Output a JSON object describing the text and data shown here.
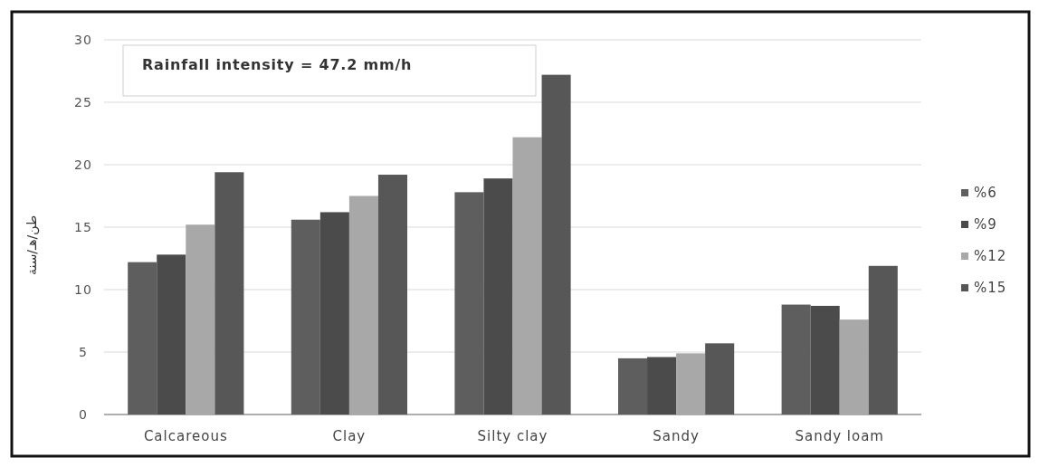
{
  "chart_data": {
    "type": "bar",
    "ylabel": "طن/هـ/سنة",
    "annotations": [
      "Rainfall intensity = 47.2 mm/h"
    ],
    "categories": [
      "Calcareous",
      "Clay",
      "Silty clay",
      "Sandy",
      "Sandy loam"
    ],
    "series": [
      {
        "name": "%6",
        "color": "#5e5e5e",
        "values": [
          12.2,
          15.6,
          17.8,
          4.5,
          8.8
        ]
      },
      {
        "name": "%9",
        "color": "#4b4b4b",
        "values": [
          12.8,
          16.2,
          18.9,
          4.6,
          8.7
        ]
      },
      {
        "name": "%12",
        "color": "#a8a8a8",
        "values": [
          15.2,
          17.5,
          22.2,
          4.9,
          7.6
        ]
      },
      {
        "name": "%15",
        "color": "#575757",
        "values": [
          19.4,
          19.2,
          27.2,
          5.7,
          11.9
        ]
      }
    ],
    "ylim": [
      0,
      30
    ],
    "yticks": [
      0,
      5,
      10,
      15,
      20,
      25,
      30
    ],
    "grid": "y",
    "legend": "right"
  }
}
